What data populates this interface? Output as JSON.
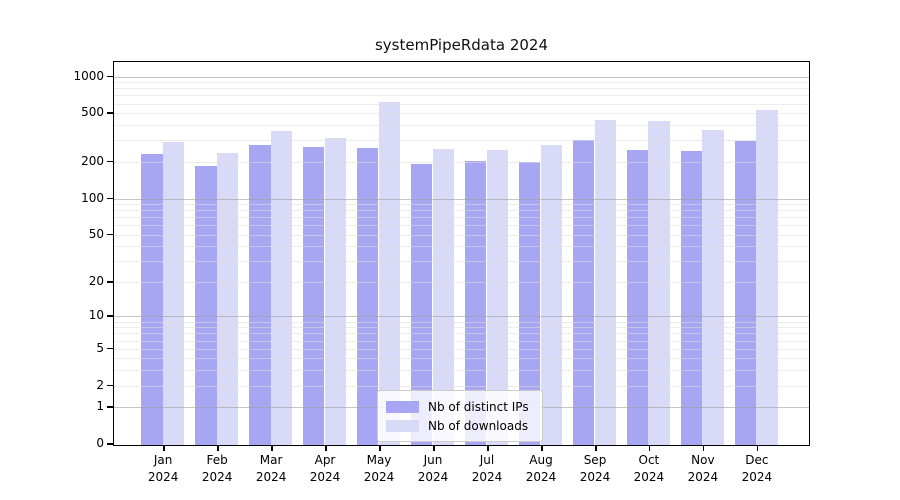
{
  "title": "systemPipeRdata 2024",
  "legend": {
    "items": [
      {
        "label": "Nb of distinct IPs",
        "color": "#a6a6f2"
      },
      {
        "label": "Nb of downloads",
        "color": "#d9d9f8"
      }
    ]
  },
  "chart_data": {
    "type": "bar",
    "title": "systemPipeRdata 2024",
    "categories": [
      "Jan",
      "Feb",
      "Mar",
      "Apr",
      "May",
      "Jun",
      "Jul",
      "Aug",
      "Sep",
      "Oct",
      "Nov",
      "Dec"
    ],
    "category_year": "2024",
    "series": [
      {
        "name": "Nb of distinct IPs",
        "color": "#a6a6f2",
        "values": [
          235,
          190,
          283,
          272,
          266,
          196,
          206,
          203,
          310,
          256,
          250,
          305
        ]
      },
      {
        "name": "Nb of downloads",
        "color": "#d9d9f8",
        "values": [
          295,
          240,
          365,
          318,
          630,
          258,
          256,
          283,
          448,
          440,
          372,
          540
        ]
      }
    ],
    "xlabel": "",
    "ylabel": "",
    "y_scale": "log1p",
    "ylim": [
      0,
      1313
    ],
    "y_ticks": [
      1000,
      500,
      200,
      100,
      50,
      20,
      10,
      5,
      2,
      1,
      0
    ],
    "grid_major": [
      1,
      10,
      100,
      1000
    ],
    "grid_minor": [
      2,
      3,
      4,
      5,
      6,
      7,
      8,
      9,
      20,
      30,
      40,
      50,
      60,
      70,
      80,
      90,
      200,
      300,
      400,
      500,
      600,
      700,
      800,
      900
    ],
    "legend_position": "lower center",
    "grid": "horizontal"
  }
}
